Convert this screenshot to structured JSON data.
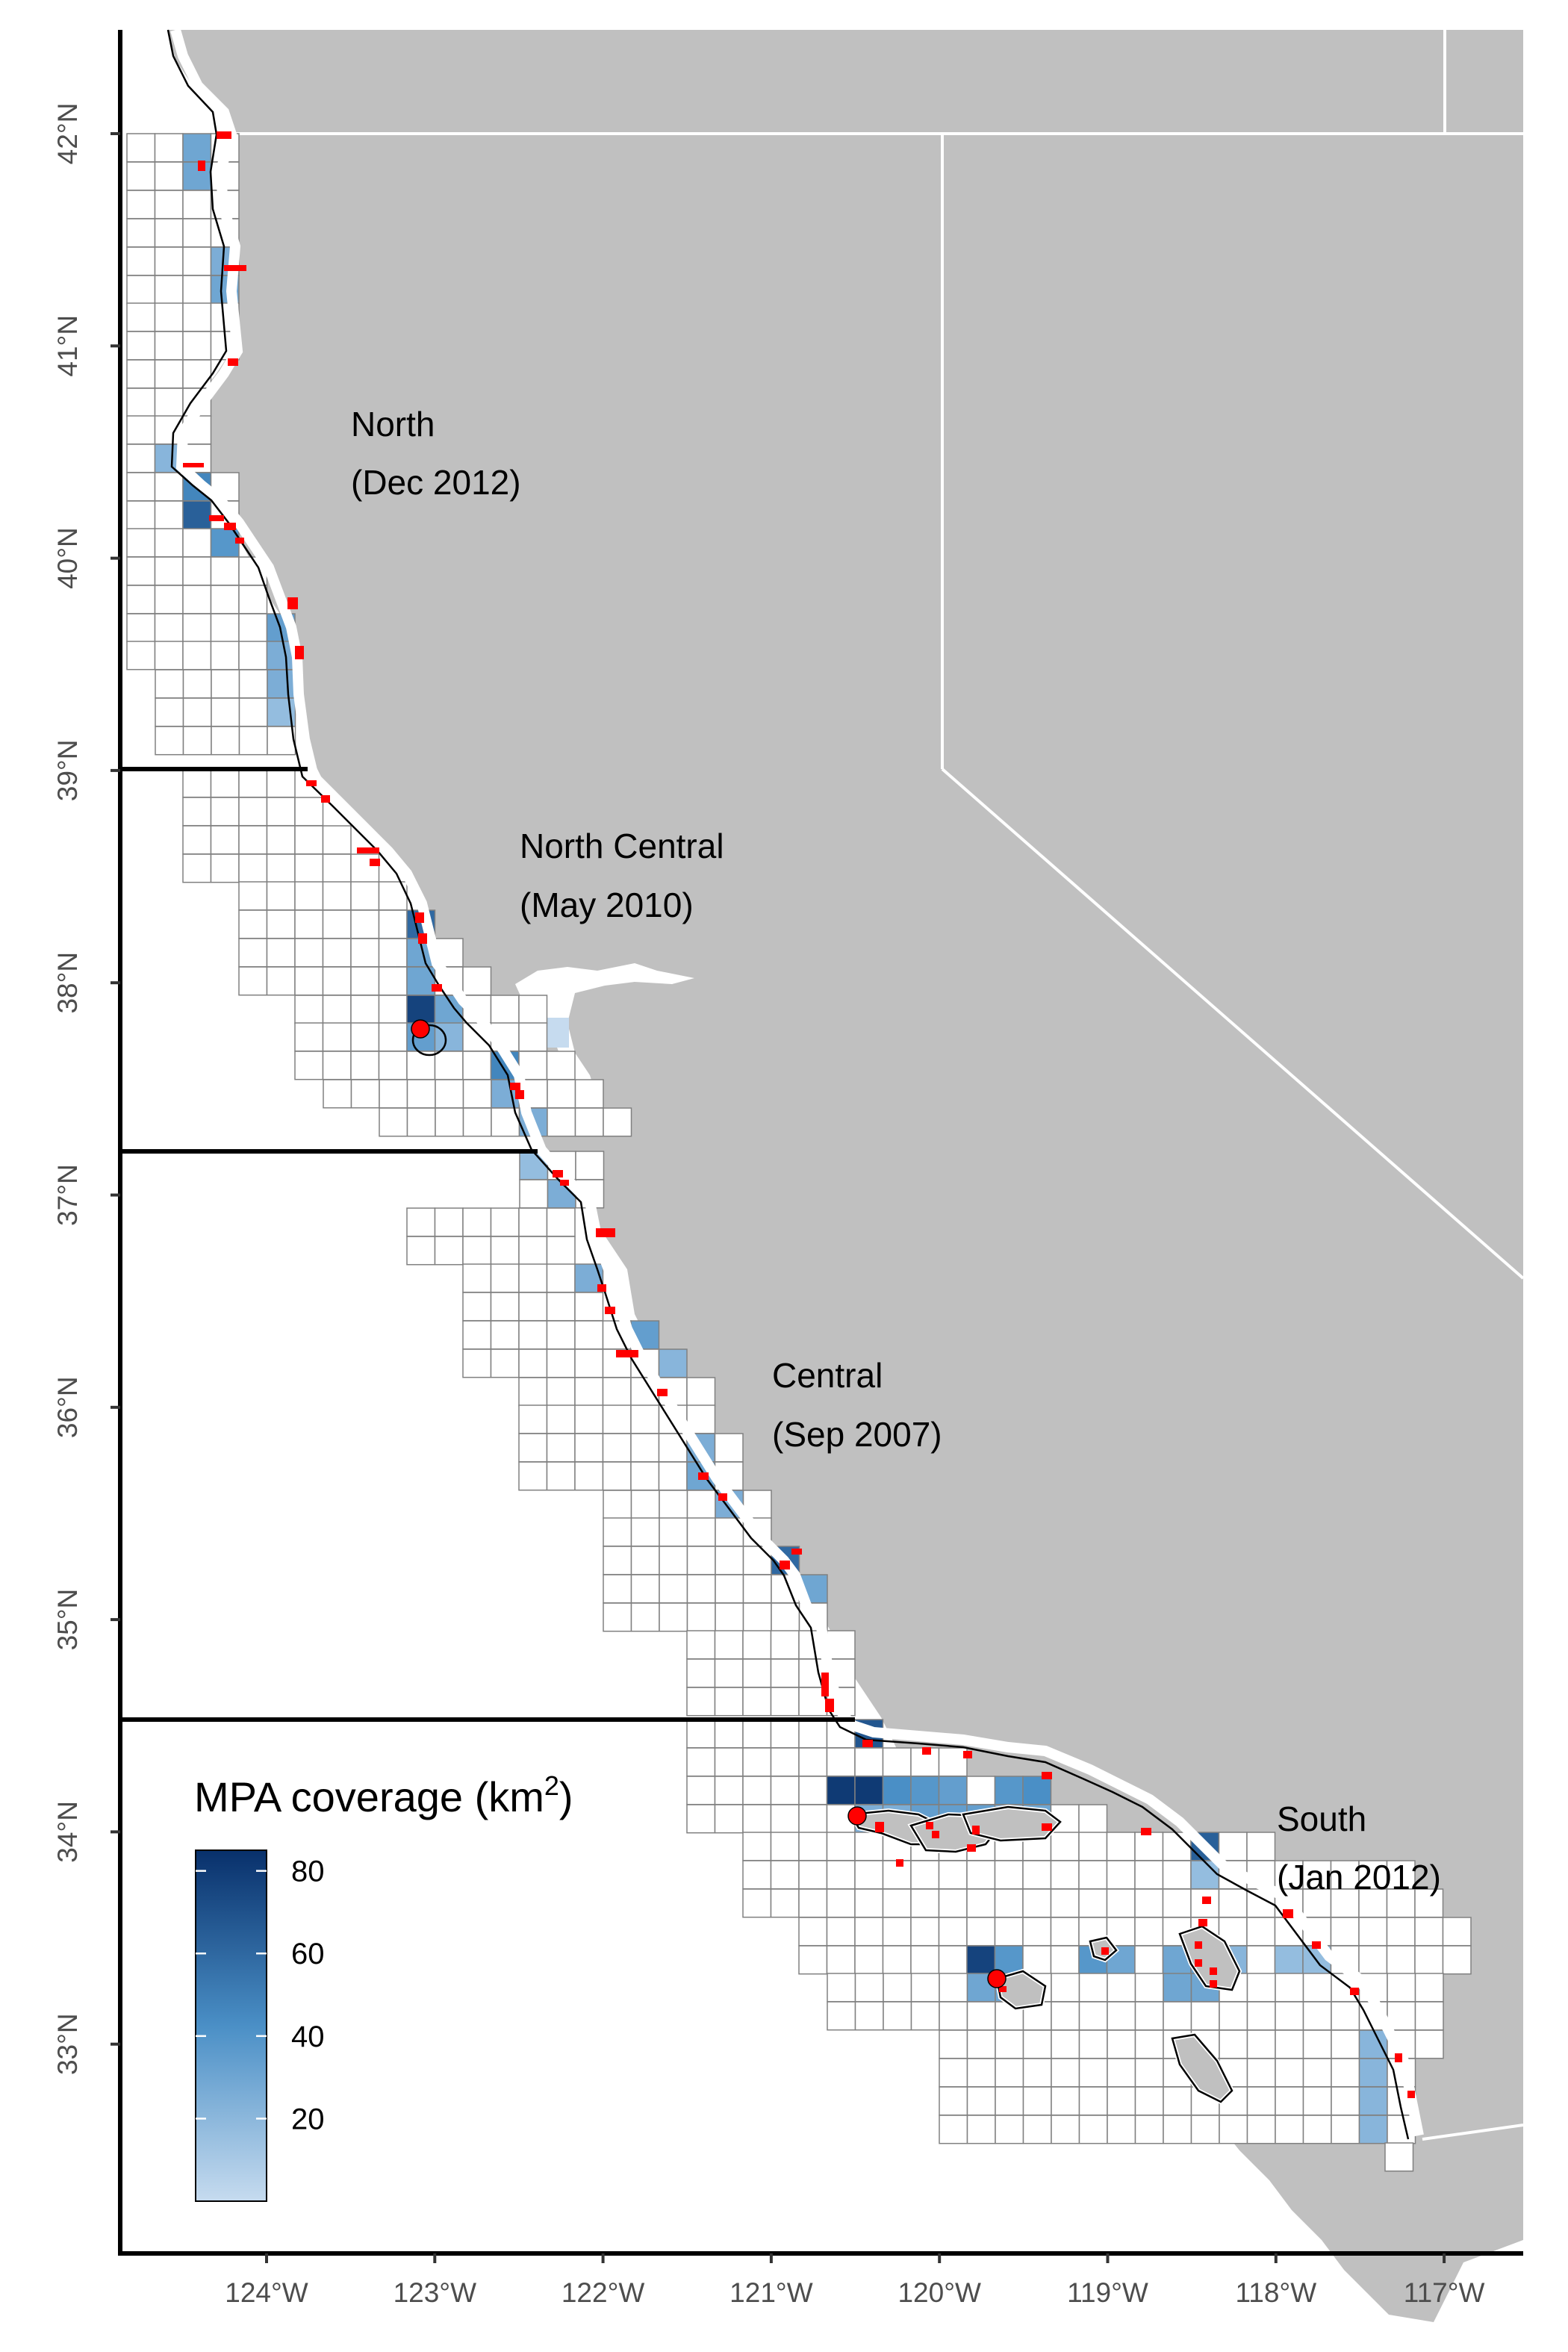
{
  "map": {
    "x_axis": {
      "ticks": [
        "124°W",
        "123°W",
        "122°W",
        "121°W",
        "120°W",
        "119°W",
        "118°W",
        "117°W"
      ]
    },
    "y_axis": {
      "ticks": [
        "42°N",
        "41°N",
        "40°N",
        "39°N",
        "38°N",
        "37°N",
        "36°N",
        "35°N",
        "34°N",
        "33°N"
      ]
    },
    "regions": [
      {
        "name": "North",
        "date": "(Dec 2012)"
      },
      {
        "name": "North Central",
        "date": "(May 2010)"
      },
      {
        "name": "Central",
        "date": "(Sep 2007)"
      },
      {
        "name": "South",
        "date": "(Jan 2012)"
      }
    ],
    "region_boundaries_lat": [
      39.0,
      37.18,
      34.47
    ],
    "legend": {
      "title": "MPA coverage (km",
      "title_superscript": "2",
      "title_close": ")",
      "ticks": [
        "80",
        "60",
        "40",
        "20"
      ],
      "range": [
        0,
        85
      ],
      "color_low": "#c6dbef",
      "color_high": "#08306b"
    },
    "colors": {
      "land": "#c0c0c0",
      "border": "#ffffff",
      "mpa": "#ff0000",
      "grid": "#808080"
    }
  }
}
